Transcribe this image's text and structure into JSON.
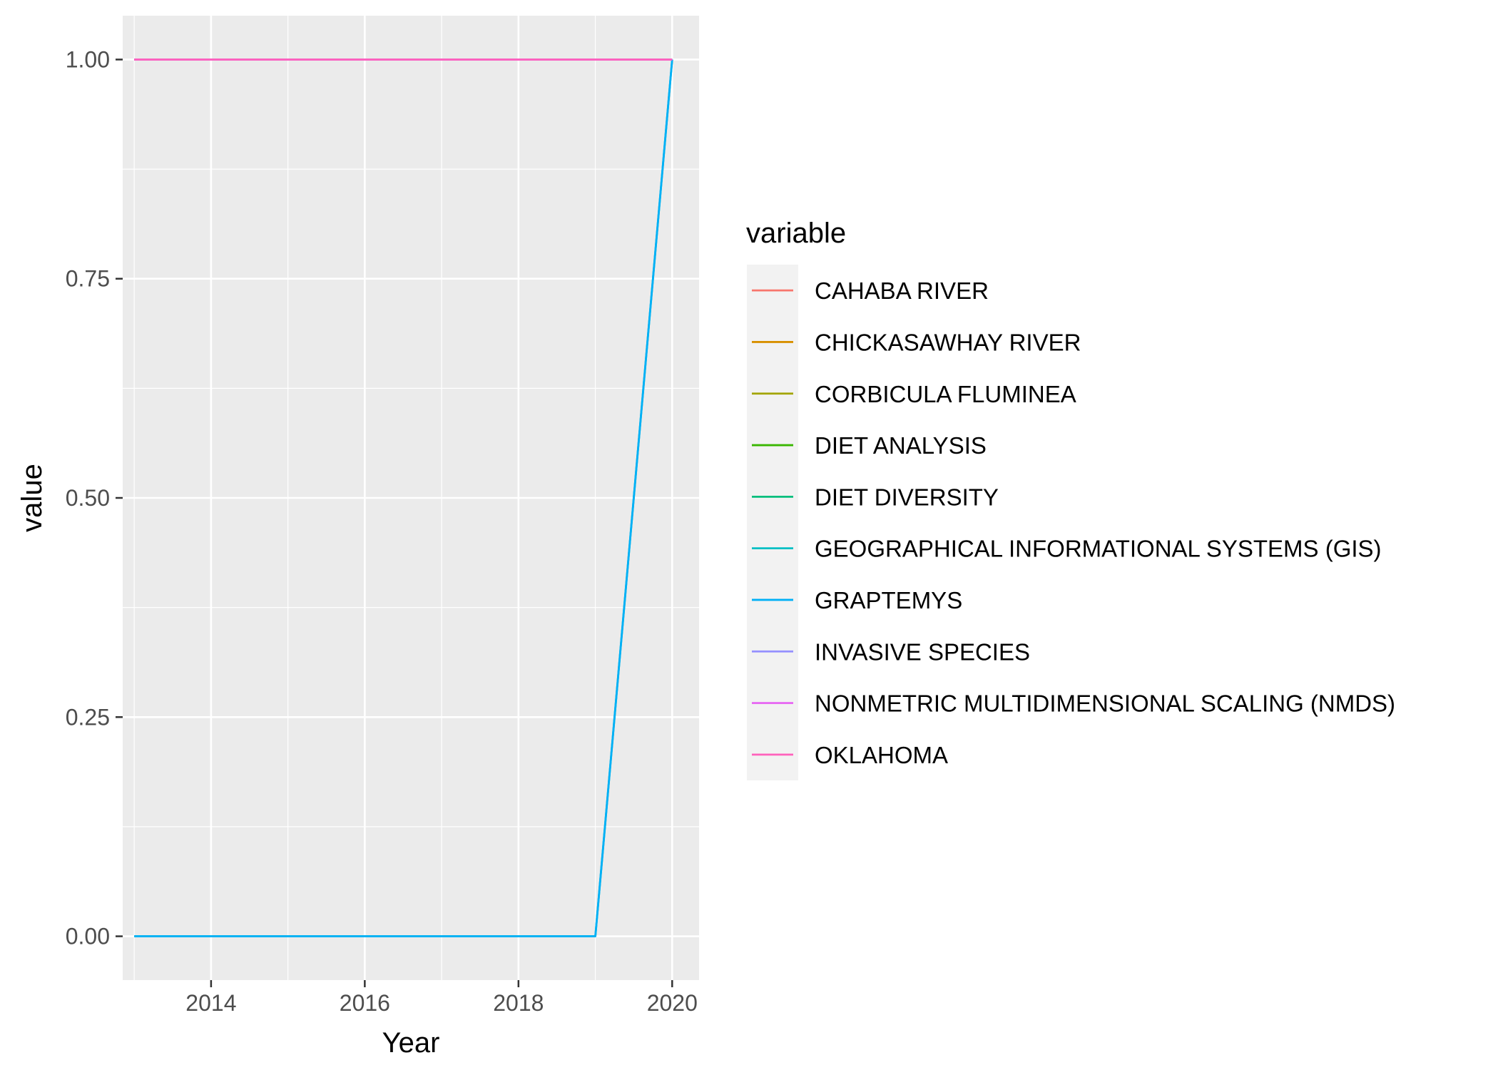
{
  "chart_data": {
    "type": "line",
    "xlabel": "Year",
    "ylabel": "value",
    "xlim": [
      2012.85,
      2020.35
    ],
    "ylim": [
      -0.05,
      1.05
    ],
    "x_ticks": [
      2014,
      2016,
      2018,
      2020
    ],
    "x_tick_labels": [
      "2014",
      "2016",
      "2018",
      "2020"
    ],
    "y_ticks": [
      0,
      0.25,
      0.5,
      0.75,
      1.0
    ],
    "y_tick_labels": [
      "0.00",
      "0.25",
      "0.50",
      "0.75",
      "1.00"
    ],
    "grid": true,
    "legend": {
      "title": "variable",
      "position": "right"
    },
    "x": [
      2013,
      2014,
      2015,
      2016,
      2017,
      2018,
      2019,
      2020
    ],
    "series": [
      {
        "name": "CAHABA RIVER",
        "color": "#F8766D",
        "values": [
          1,
          1,
          1,
          1,
          1,
          1,
          1,
          1
        ]
      },
      {
        "name": "CHICKASAWHAY RIVER",
        "color": "#D89000",
        "values": [
          1,
          1,
          1,
          1,
          1,
          1,
          1,
          1
        ]
      },
      {
        "name": "CORBICULA FLUMINEA",
        "color": "#A3A500",
        "values": [
          1,
          1,
          1,
          1,
          1,
          1,
          1,
          1
        ]
      },
      {
        "name": "DIET ANALYSIS",
        "color": "#39B600",
        "values": [
          1,
          1,
          1,
          1,
          1,
          1,
          1,
          1
        ]
      },
      {
        "name": "DIET DIVERSITY",
        "color": "#00BF7D",
        "values": [
          1,
          1,
          1,
          1,
          1,
          1,
          1,
          1
        ]
      },
      {
        "name": "GEOGRAPHICAL INFORMATIONAL SYSTEMS (GIS)",
        "color": "#00BFC4",
        "values": [
          0,
          0,
          0,
          0,
          0,
          0,
          0,
          1
        ]
      },
      {
        "name": "GRAPTEMYS",
        "color": "#00B0F6",
        "values": [
          0,
          0,
          0,
          0,
          0,
          0,
          0,
          1
        ]
      },
      {
        "name": "INVASIVE SPECIES",
        "color": "#9590FF",
        "values": [
          1,
          1,
          1,
          1,
          1,
          1,
          1,
          1
        ]
      },
      {
        "name": "NONMETRIC MULTIDIMENSIONAL SCALING (NMDS)",
        "color": "#E76BF3",
        "values": [
          1,
          1,
          1,
          1,
          1,
          1,
          1,
          1
        ]
      },
      {
        "name": "OKLAHOMA",
        "color": "#FF62BC",
        "values": [
          1,
          1,
          1,
          1,
          1,
          1,
          1,
          1
        ]
      }
    ]
  }
}
